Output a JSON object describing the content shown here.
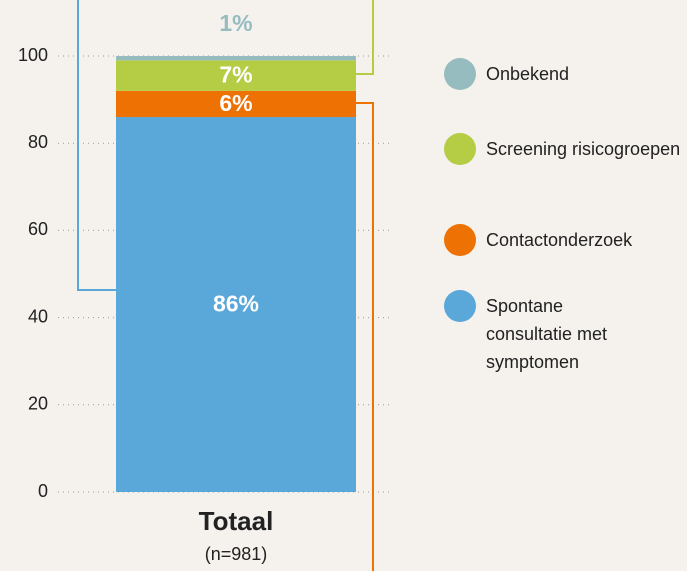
{
  "chart_data": {
    "type": "stacked-bar",
    "categories": [
      "Totaal"
    ],
    "subtitle": "(n=981)",
    "ylim": [
      0,
      100
    ],
    "yticks": [
      0,
      20,
      40,
      60,
      80,
      100
    ],
    "grid": true,
    "legend": "right",
    "series": [
      {
        "name": "Spontane consultatie met symptomen",
        "color": "#5aa7d9",
        "values": [
          86
        ],
        "value_labels": [
          "86%"
        ]
      },
      {
        "name": "Contactonderzoek",
        "color": "#ee7203",
        "values": [
          6
        ],
        "value_labels": [
          "6%"
        ]
      },
      {
        "name": "Screening risicogroepen",
        "color": "#b5cc45",
        "values": [
          7
        ],
        "value_labels": [
          "7%"
        ]
      },
      {
        "name": "Onbekend",
        "color": "#96bcc0",
        "values": [
          1
        ],
        "value_labels": [
          "1%"
        ]
      }
    ]
  }
}
